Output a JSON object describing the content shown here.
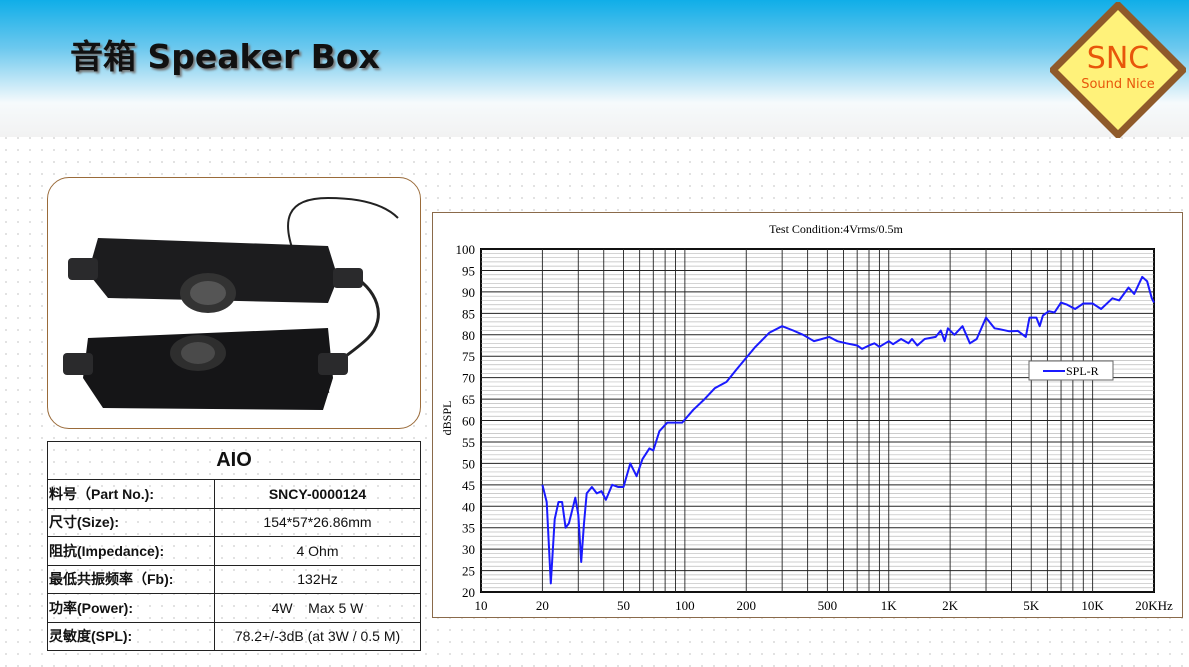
{
  "header": {
    "title": "音箱  Speaker Box"
  },
  "logo": {
    "main": "SNC",
    "sub": "Sound Nice",
    "fill": "#fff27a",
    "border": "#8f5a2a",
    "text_color": "#e8560a"
  },
  "spec_table": {
    "title": "AIO",
    "rows": [
      {
        "label": "料号（Part No.):",
        "value": "SNCY-0000124"
      },
      {
        "label": "尺寸(Size):",
        "value": "154*57*26.86mm"
      },
      {
        "label": "阻抗(Impedance):",
        "value": "4 Ohm"
      },
      {
        "label": "最低共振频率（Fb):",
        "value": "132Hz"
      },
      {
        "label": "功率(Power):",
        "value": "4W    Max 5 W"
      },
      {
        "label": "灵敏度(SPL):",
        "value": "78.2+/-3dB (at 3W / 0.5 M)"
      }
    ]
  },
  "chart_data": {
    "type": "line",
    "title": "Test Condition:4Vrms/0.5m",
    "ylabel": "dBSPL",
    "xlabel": "",
    "x_scale": "log",
    "xlim": [
      10,
      20000
    ],
    "ylim": [
      20,
      100
    ],
    "grid": true,
    "legend": "right",
    "x_ticks": [
      {
        "v": 10,
        "l": "10"
      },
      {
        "v": 20,
        "l": "20"
      },
      {
        "v": 50,
        "l": "50"
      },
      {
        "v": 100,
        "l": "100"
      },
      {
        "v": 200,
        "l": "200"
      },
      {
        "v": 500,
        "l": "500"
      },
      {
        "v": 1000,
        "l": "1K"
      },
      {
        "v": 2000,
        "l": "2K"
      },
      {
        "v": 5000,
        "l": "5K"
      },
      {
        "v": 10000,
        "l": "10K"
      },
      {
        "v": 20000,
        "l": "20KHz"
      }
    ],
    "y_ticks": [
      20,
      25,
      30,
      35,
      40,
      45,
      50,
      55,
      60,
      65,
      70,
      75,
      80,
      85,
      90,
      95,
      100
    ],
    "series": [
      {
        "name": "SPL-R",
        "color": "#1a1aff",
        "x": [
          20,
          21,
          22,
          23,
          24,
          25,
          26,
          27,
          29,
          30,
          31,
          32,
          33,
          35,
          37,
          39,
          41,
          44,
          47,
          50,
          54,
          58,
          62,
          67,
          70,
          75,
          82,
          90,
          97,
          110,
          125,
          140,
          160,
          180,
          220,
          260,
          300,
          340,
          380,
          430,
          470,
          510,
          560,
          620,
          700,
          740,
          800,
          850,
          900,
          1000,
          1050,
          1150,
          1250,
          1300,
          1380,
          1500,
          1700,
          1800,
          1880,
          1950,
          2100,
          2300,
          2500,
          2700,
          3000,
          3300,
          3500,
          3900,
          4300,
          4700,
          4900,
          5300,
          5500,
          5700,
          6100,
          6500,
          7000,
          7500,
          8200,
          9000,
          10000,
          11000,
          12500,
          13500,
          15000,
          16000,
          17500,
          18500,
          19500,
          20000
        ],
        "y": [
          45,
          41,
          22,
          37,
          41,
          41,
          35,
          36,
          42,
          38,
          27,
          36,
          43,
          44.5,
          43,
          43.5,
          41.5,
          45,
          44.5,
          44.5,
          50,
          47,
          51,
          53.5,
          53,
          57.5,
          59.5,
          59.5,
          59.5,
          62.5,
          65,
          67.5,
          69,
          72,
          77,
          80.5,
          82,
          81,
          80,
          78.5,
          79,
          79.5,
          78.5,
          78,
          77.5,
          76.7,
          77.5,
          78,
          77.2,
          78.5,
          77.8,
          79,
          78,
          79,
          77.5,
          79,
          79.5,
          81,
          78.5,
          81.5,
          80,
          82,
          78,
          79,
          84,
          81.5,
          81.3,
          80.8,
          80.9,
          79.5,
          84,
          84,
          82,
          84.5,
          85.5,
          85.2,
          87.5,
          87,
          86,
          87.3,
          87.3,
          86,
          88.5,
          88,
          91,
          89.5,
          93.5,
          92.5,
          88.5,
          87.5
        ]
      }
    ]
  }
}
